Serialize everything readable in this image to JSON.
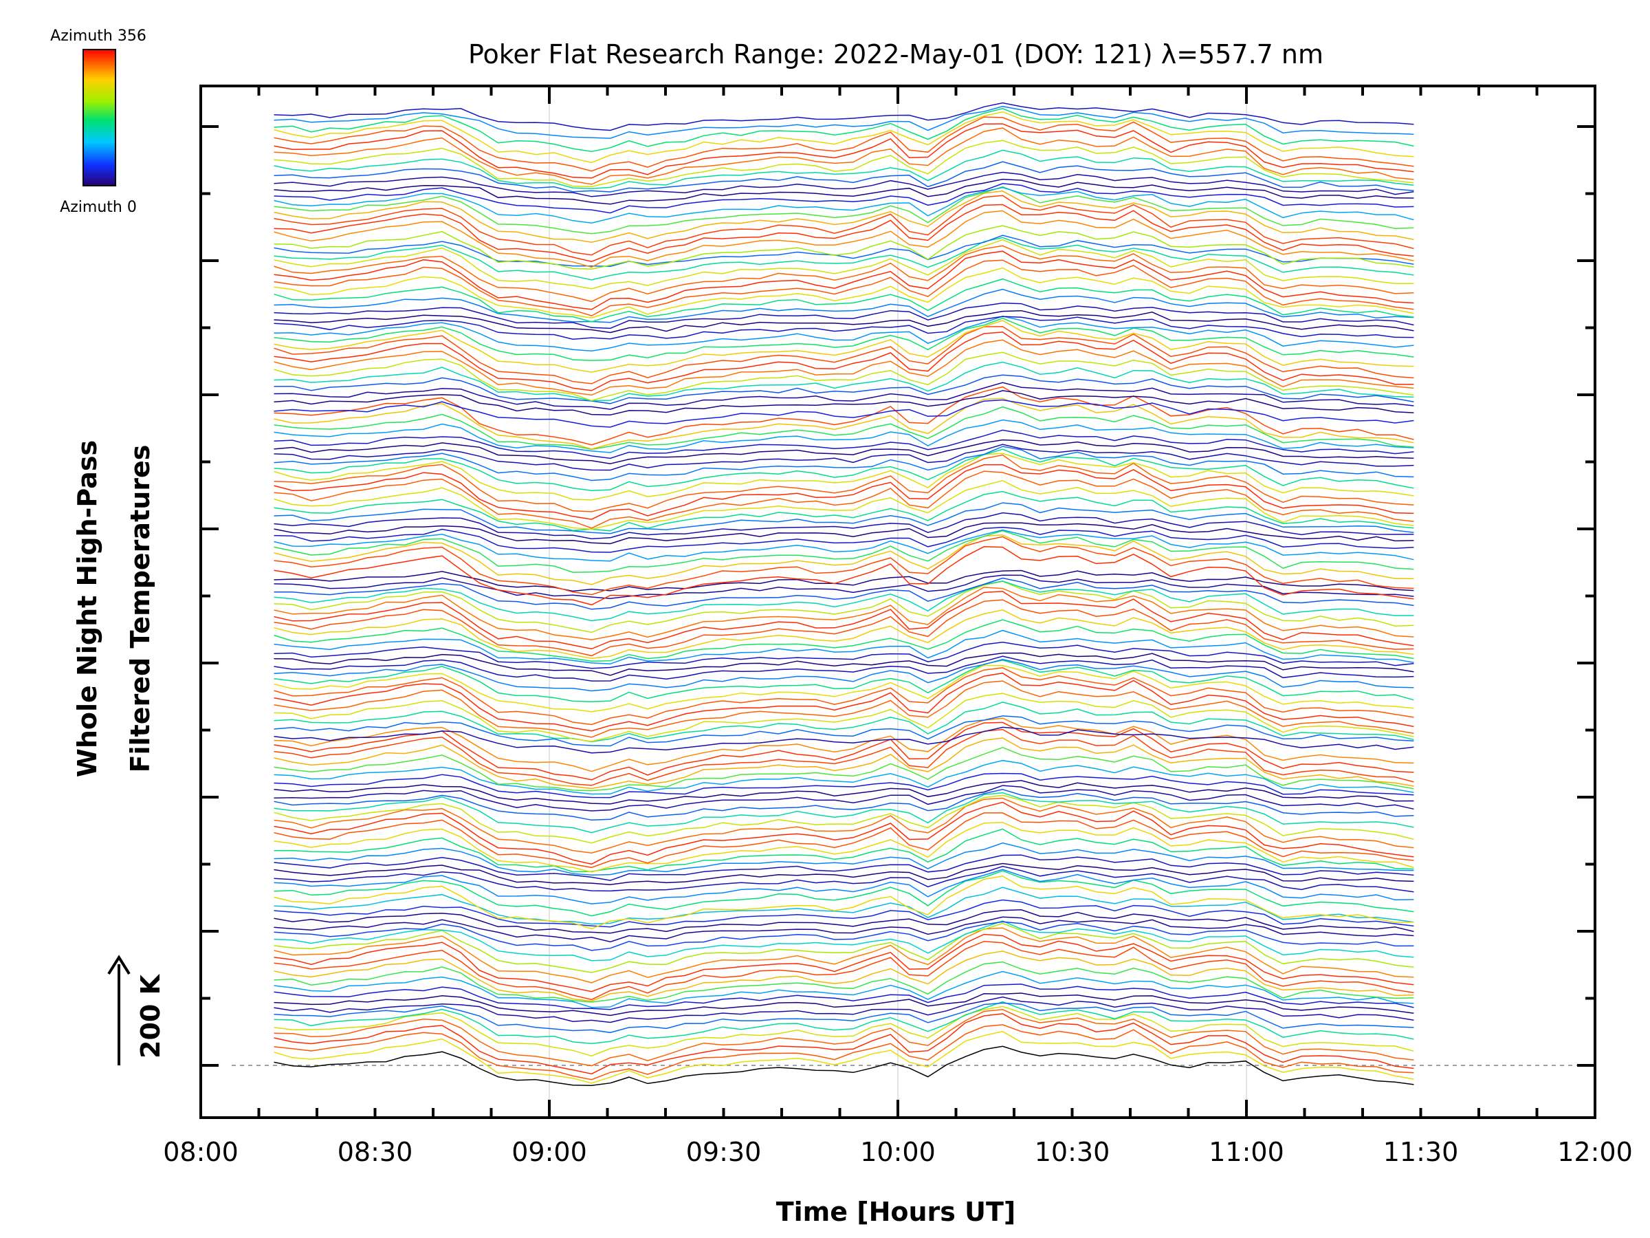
{
  "chart_data": {
    "type": "line",
    "title": "Poker Flat Research Range: 2022-May-01 (DOY: 121) λ=557.7 nm",
    "xlabel": "Time [Hours UT]",
    "ylabel_line1": "Whole Night High-Pass",
    "ylabel_line2": "Filtered Temperatures",
    "scale_label": "200 K",
    "x_range_hours": [
      8.0,
      12.0
    ],
    "x_ticks": [
      "08:00",
      "08:30",
      "09:00",
      "09:30",
      "10:00",
      "10:30",
      "11:00",
      "11:30",
      "12:00"
    ],
    "data_x_range_hours": [
      8.21,
      11.48
    ],
    "colorbar": {
      "top_label": "Azimuth 356",
      "bottom_label": "Azimuth 0",
      "colormap": "rainbow",
      "range": [
        0,
        356
      ]
    },
    "stack_offset_k": 20,
    "trace_count": 140,
    "grid": "vertical at hours",
    "reference_line": "dashed at baseline",
    "colors": {
      "series_palette_low": "#1a0080",
      "series_palette_high": "#ff3000",
      "axis": "#000000",
      "grid": "#c8c8c8"
    }
  }
}
